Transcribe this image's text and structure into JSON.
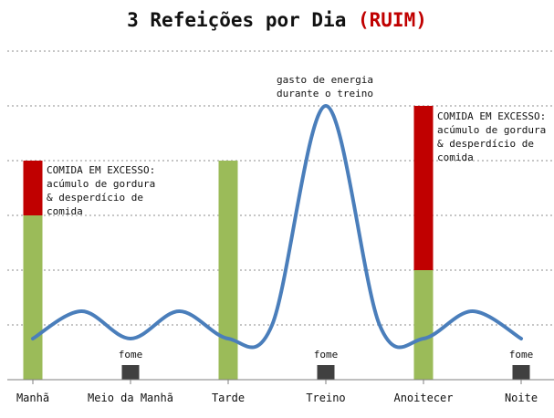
{
  "title": {
    "main": "3 Refeições por Dia",
    "tag": "(RUIM)"
  },
  "colors": {
    "healthy": "#9bbb59",
    "excess": "#c00000",
    "hunger": "#404040",
    "energy": "#4a7ebb",
    "grid": "#8c8c8c",
    "tag": "#c00000"
  },
  "chart_data": {
    "type": "bar",
    "categories": [
      "Manhã",
      "Meio da Manhã",
      "Tarde",
      "Treino",
      "Anoitecer",
      "Noite"
    ],
    "ylim": [
      0,
      6
    ],
    "grid": "dashed horizontal",
    "series": [
      {
        "key": "healthy",
        "values": [
          3,
          0,
          4,
          0,
          2,
          0
        ]
      },
      {
        "key": "excess",
        "values": [
          1,
          0,
          0,
          0,
          3,
          0
        ]
      },
      {
        "key": "hunger",
        "values": [
          0,
          0.25,
          0,
          0.25,
          0,
          0.25
        ]
      }
    ],
    "energy_curve": {
      "x": [
        0,
        0.5,
        1,
        1.5,
        2,
        2.45,
        3,
        3.55,
        4,
        4.5,
        5
      ],
      "y": [
        0.75,
        1.25,
        0.75,
        1.25,
        0.75,
        1.0,
        5.0,
        1.0,
        0.75,
        1.25,
        0.75
      ]
    },
    "annotations": {
      "excess_morning": [
        "COMIDA EM EXCESSO:",
        "acúmulo de gordura",
        "& desperdício de",
        "comida"
      ],
      "excess_evening": [
        "COMIDA EM EXCESSO:",
        "acúmulo de gordura",
        "& desperdício de",
        "comida"
      ],
      "workout": [
        "gasto de energia",
        "durante o treino"
      ],
      "hunger": "fome"
    }
  }
}
